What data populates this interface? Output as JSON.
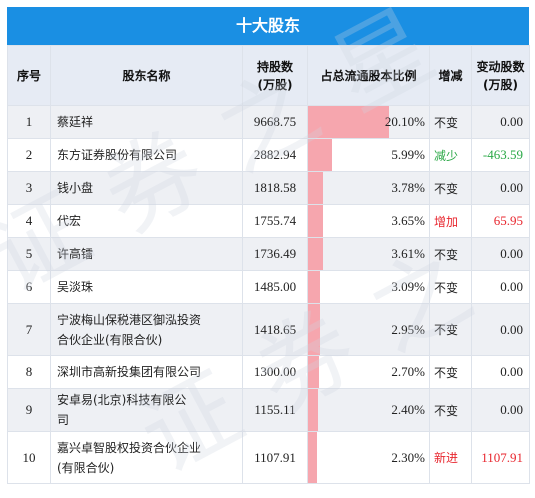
{
  "title": "十大股东",
  "headers": {
    "no": "序号",
    "name": "股东名称",
    "hold_l1": "持股数",
    "hold_l2": "(万股)",
    "ratio": "占总流通股本比例",
    "change": "增减",
    "amt_l1": "变动股数",
    "amt_l2": "(万股)"
  },
  "colors": {
    "header_bg": "#1a8fe3",
    "bar": "#f6a6ae",
    "increase": "#e8262e",
    "decrease": "#2aa846"
  },
  "chart_data": {
    "type": "table",
    "title": "十大股东",
    "rows": [
      {
        "no": "1",
        "name": "蔡廷祥",
        "name2": "",
        "hold": "9668.75",
        "ratio": "20.10%",
        "ratio_value": 20.1,
        "change": "不变",
        "change_color": "normal",
        "amount": "0.00",
        "amount_color": "normal"
      },
      {
        "no": "2",
        "name": "东方证券股份有限公司",
        "name2": "",
        "hold": "2882.94",
        "ratio": "5.99%",
        "ratio_value": 5.99,
        "change": "减少",
        "change_color": "green",
        "amount": "-463.59",
        "amount_color": "green"
      },
      {
        "no": "3",
        "name": "钱小盘",
        "name2": "",
        "hold": "1818.58",
        "ratio": "3.78%",
        "ratio_value": 3.78,
        "change": "不变",
        "change_color": "normal",
        "amount": "0.00",
        "amount_color": "normal"
      },
      {
        "no": "4",
        "name": "代宏",
        "name2": "",
        "hold": "1755.74",
        "ratio": "3.65%",
        "ratio_value": 3.65,
        "change": "增加",
        "change_color": "red",
        "amount": "65.95",
        "amount_color": "red"
      },
      {
        "no": "5",
        "name": "许高镭",
        "name2": "",
        "hold": "1736.49",
        "ratio": "3.61%",
        "ratio_value": 3.61,
        "change": "不变",
        "change_color": "normal",
        "amount": "0.00",
        "amount_color": "normal"
      },
      {
        "no": "6",
        "name": "吴淡珠",
        "name2": "",
        "hold": "1485.00",
        "ratio": "3.09%",
        "ratio_value": 3.09,
        "change": "不变",
        "change_color": "normal",
        "amount": "0.00",
        "amount_color": "normal"
      },
      {
        "no": "7",
        "name": "宁波梅山保税港区御泓投资",
        "name2": "合伙企业(有限合伙)",
        "hold": "1418.65",
        "ratio": "2.95%",
        "ratio_value": 2.95,
        "change": "不变",
        "change_color": "normal",
        "amount": "0.00",
        "amount_color": "normal"
      },
      {
        "no": "8",
        "name": "深圳市高新投集团有限公司",
        "name2": "",
        "hold": "1300.00",
        "ratio": "2.70%",
        "ratio_value": 2.7,
        "change": "不变",
        "change_color": "normal",
        "amount": "0.00",
        "amount_color": "normal"
      },
      {
        "no": "9",
        "name": "安卓易(北京)科技有限公",
        "name2": "司",
        "hold": "1155.11",
        "ratio": "2.40%",
        "ratio_value": 2.4,
        "change": "不变",
        "change_color": "normal",
        "amount": "0.00",
        "amount_color": "normal"
      },
      {
        "no": "10",
        "name": "嘉兴卓智股权投资合伙企业",
        "name2": "(有限合伙)",
        "hold": "1107.91",
        "ratio": "2.30%",
        "ratio_value": 2.3,
        "change": "新进",
        "change_color": "red",
        "amount": "1107.91",
        "amount_color": "red"
      }
    ]
  }
}
